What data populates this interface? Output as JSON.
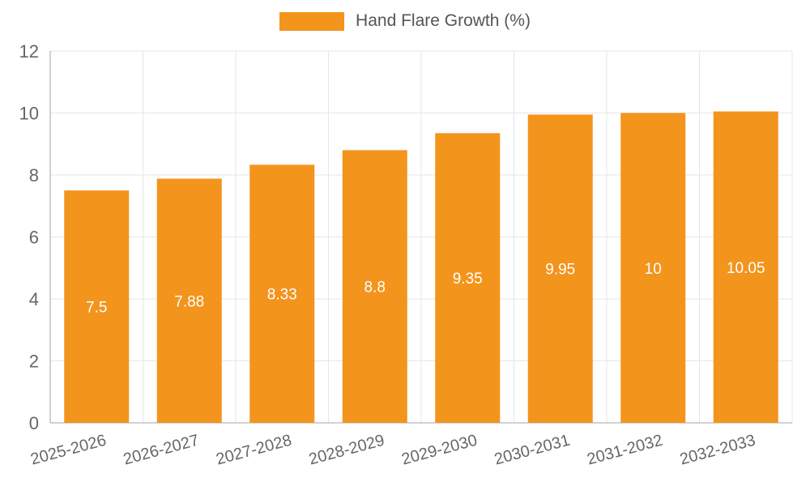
{
  "legend": {
    "label": "Hand Flare Growth (%)"
  },
  "colors": {
    "bar": "#F3941D",
    "grid": "#E6E6E6",
    "axis": "#A3A3A3",
    "tick_label": "#666666",
    "bar_label": "#FFFFFF",
    "legend_text": "#555555"
  },
  "chart_data": {
    "type": "bar",
    "title": "Hand Flare Growth (%)",
    "categories": [
      "2025-2026",
      "2026-2027",
      "2027-2028",
      "2028-2029",
      "2029-2030",
      "2030-2031",
      "2031-2032",
      "2032-2033"
    ],
    "values": [
      7.5,
      7.88,
      8.33,
      8.8,
      9.35,
      9.95,
      10,
      10.05
    ],
    "series": [
      {
        "name": "Hand Flare Growth (%)",
        "values": [
          7.5,
          7.88,
          8.33,
          8.8,
          9.35,
          9.95,
          10,
          10.05
        ]
      }
    ],
    "xlabel": "",
    "ylabel": "",
    "ylim": [
      0,
      12
    ],
    "ytick_step": 2,
    "yticks": [
      0,
      2,
      4,
      6,
      8,
      10,
      12
    ],
    "grid": true,
    "legend_position": "top",
    "bar_label_position": "inside-middle",
    "x_label_rotation_deg": -15
  }
}
